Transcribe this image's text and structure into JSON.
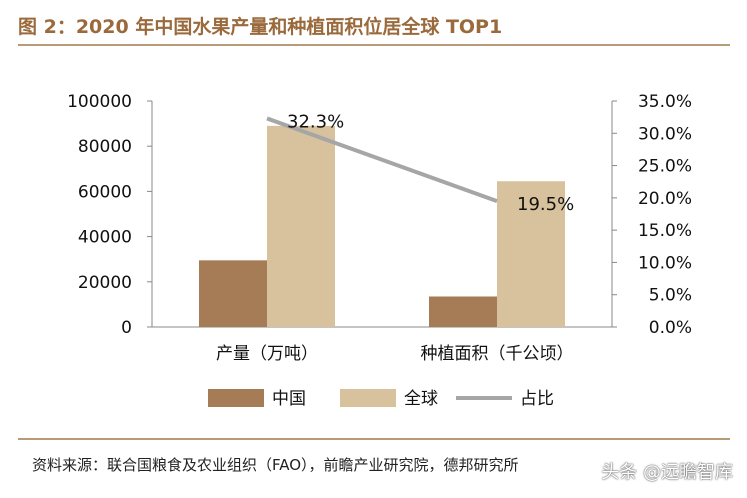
{
  "title": "图 2：2020 年中国水果产量和种植面积位居全球 TOP1",
  "source": "资料来源：联合国粮食及农业组织（FAO），前瞻产业研究院，德邦研究所",
  "watermark": "头条 @远瞻智库",
  "colors": {
    "china": "#a57c55",
    "global": "#d7c29d",
    "share": "#a6a6a6",
    "title": "#9a6a3c"
  },
  "chart_data": {
    "type": "bar",
    "categories": [
      "产量（万吨）",
      "种植面积（千公顷）"
    ],
    "series": [
      {
        "name": "中国",
        "kind": "bar",
        "axis": "left",
        "values": [
          29500,
          13500
        ]
      },
      {
        "name": "全球",
        "kind": "bar",
        "axis": "left",
        "values": [
          89000,
          64500
        ]
      },
      {
        "name": "占比",
        "kind": "line",
        "axis": "right",
        "values": [
          32.3,
          19.5
        ],
        "labels": [
          "32.3%",
          "19.5%"
        ]
      }
    ],
    "y_left": {
      "min": 0,
      "max": 100000,
      "ticks": [
        "100000",
        "80000",
        "60000",
        "40000",
        "20000",
        "0"
      ]
    },
    "y_right": {
      "min": 0,
      "max": 35,
      "ticks": [
        "35.0%",
        "30.0%",
        "25.0%",
        "20.0%",
        "15.0%",
        "10.0%",
        "5.0%",
        "0.0%"
      ]
    },
    "legend": {
      "position": "bottom",
      "items": [
        "中国",
        "全球",
        "占比"
      ]
    }
  }
}
